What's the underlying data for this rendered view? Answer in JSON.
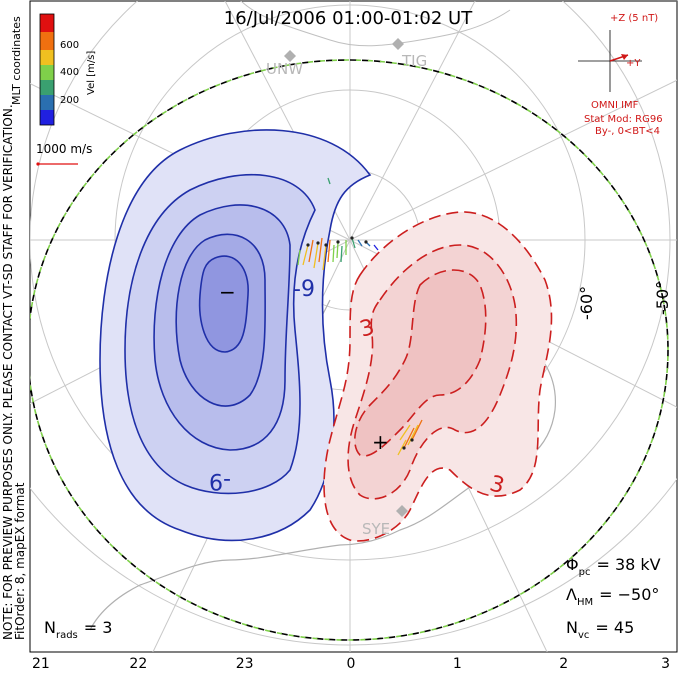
{
  "title": "16/Jul/2006 01:00-01:02 UT",
  "colorbar": {
    "label": "Vel [m/s]",
    "ticks": [
      "600",
      "400",
      "200"
    ],
    "colors": [
      "#2020e0",
      "#2a6fb0",
      "#3aa070",
      "#7fd04a",
      "#f0c020",
      "#f07010",
      "#e01010"
    ]
  },
  "coord_label": "MLT coordinates",
  "scale_vector": "1000 m/s",
  "note_line1": "NOTE: FOR PREVIEW PURPOSES ONLY. PLEASE CONTACT VT-SD STAFF FOR VERIFICATION.",
  "note_line2": "FitOrder: 8, mapEX format",
  "imf": {
    "z_label": "+Z (5 nT)",
    "y_label": "+Y",
    "source": "OMNI IMF",
    "stat_mod": "Stat Mod: RG96",
    "condition": "By-, 0<BT<4"
  },
  "stations": [
    "UNW",
    "TIG",
    "SYE"
  ],
  "lat_labels": [
    "-60°",
    "-50°"
  ],
  "contours": {
    "neg_label": "-9",
    "pos_label": "3",
    "neg_center": "−",
    "pos_center": "+"
  },
  "stats": {
    "phi_symbol": "Φ",
    "phi_sub": "pc",
    "phi_value": "= 38 kV",
    "lam_symbol": "Λ",
    "lam_sub": "HM",
    "lam_value": "= −50°",
    "nvc_symbol": "N",
    "nvc_sub": "vc",
    "nvc_value": "= 45",
    "nrads_symbol": "N",
    "nrads_sub": "rads",
    "nrads_value": "= 3"
  },
  "mlt_ticks": [
    "21",
    "22",
    "23",
    "0",
    "1",
    "2",
    "3"
  ],
  "accent": {
    "neg": "#1f2fa8",
    "pos": "#cc1f1f",
    "imf": "#d01818",
    "grid": "#bfbfbf"
  }
}
